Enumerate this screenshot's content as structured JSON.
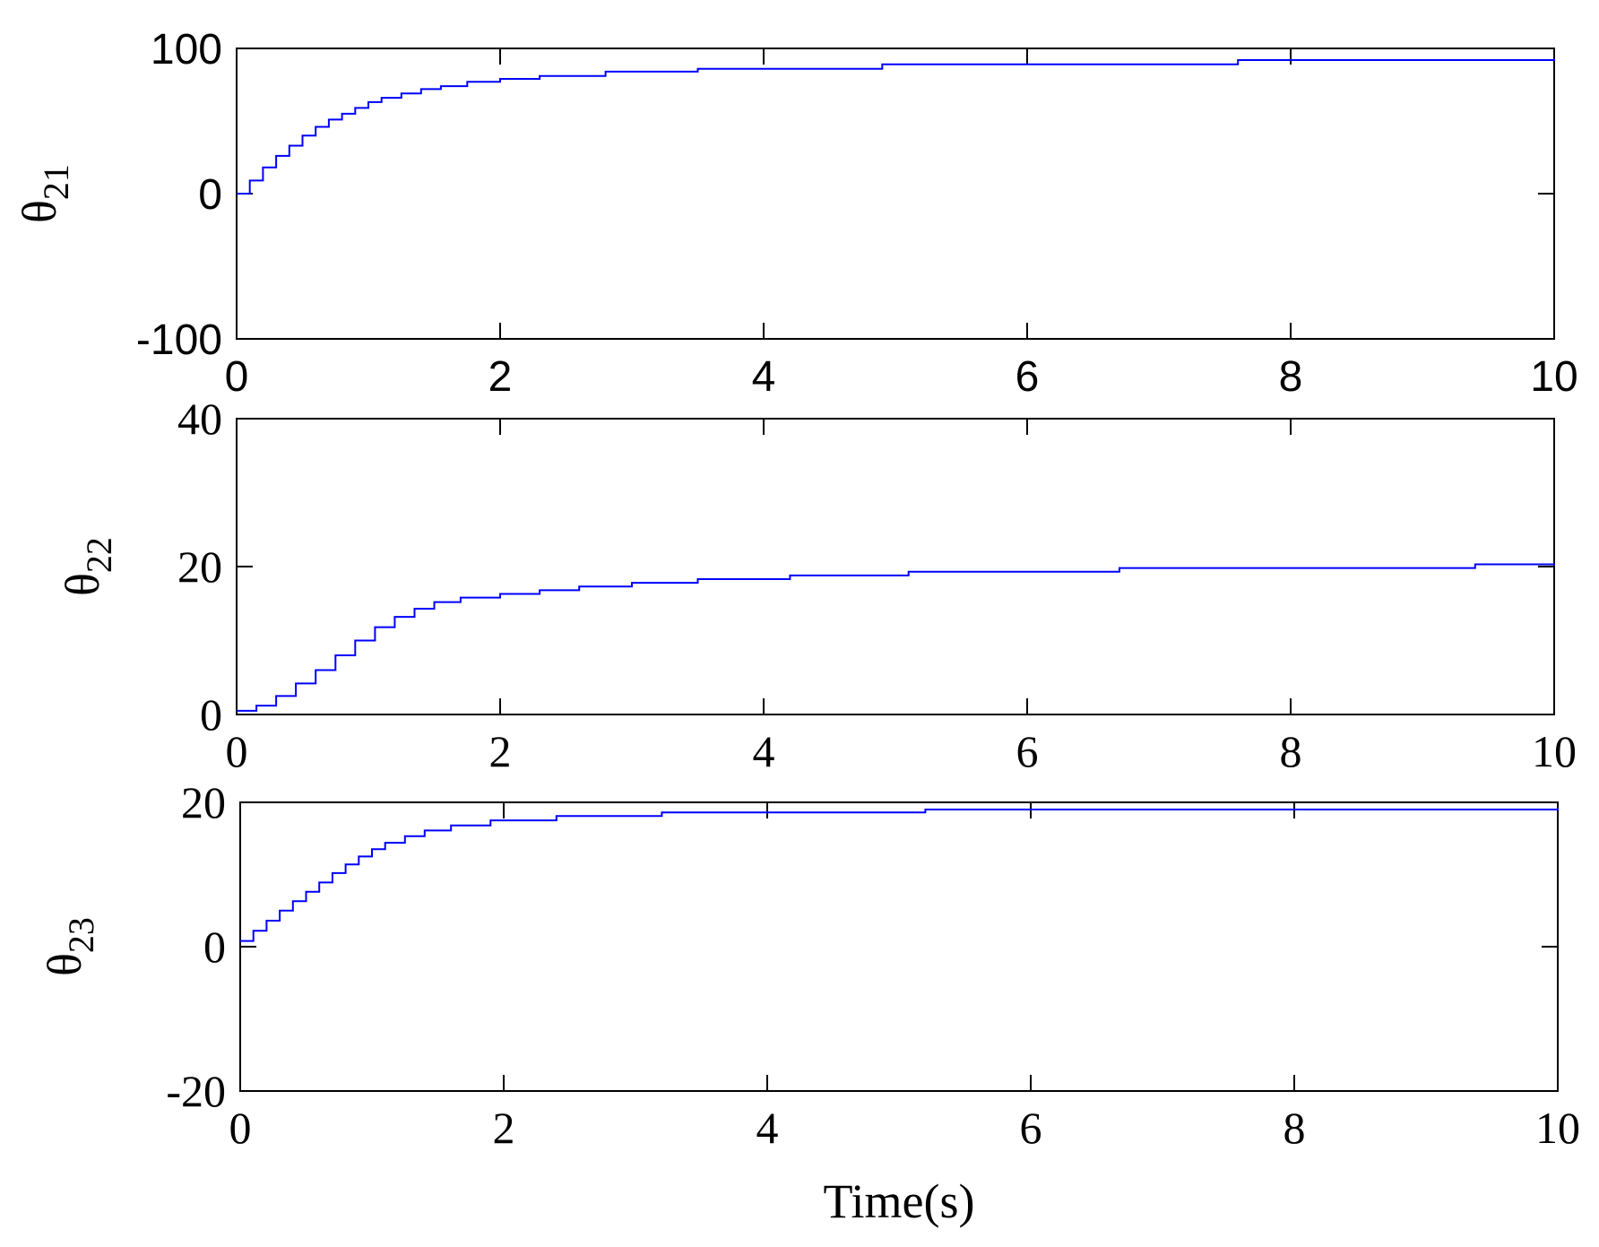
{
  "chart_data": [
    {
      "type": "line",
      "ylabel_symbol": "θ",
      "ylabel_subscript": "21",
      "xlabel": "",
      "xlim": [
        0,
        10
      ],
      "ylim": [
        -100,
        100
      ],
      "x_ticks": [
        "0",
        "2",
        "4",
        "6",
        "8",
        "10"
      ],
      "y_ticks": [
        "-100",
        "0",
        "100"
      ],
      "tick_font": "sans",
      "grid": false,
      "series": [
        {
          "color": "#0000ff",
          "x": [
            0,
            0.1,
            0.2,
            0.3,
            0.4,
            0.5,
            0.6,
            0.7,
            0.8,
            0.9,
            1.0,
            1.1,
            1.25,
            1.4,
            1.55,
            1.75,
            2.0,
            2.3,
            2.8,
            3.5,
            4.9,
            7.6,
            10
          ],
          "y": [
            0,
            9,
            18,
            26,
            33,
            40,
            46,
            51,
            55,
            59,
            63,
            66,
            69,
            72,
            74,
            77,
            79,
            81,
            84,
            86,
            89,
            92,
            93
          ]
        }
      ]
    },
    {
      "type": "line",
      "ylabel_symbol": "θ",
      "ylabel_subscript": "22",
      "xlabel": "",
      "xlim": [
        0,
        10
      ],
      "ylim": [
        0,
        40
      ],
      "x_ticks": [
        "0",
        "2",
        "4",
        "6",
        "8",
        "10"
      ],
      "y_ticks": [
        "0",
        "20",
        "40"
      ],
      "tick_font": "serif",
      "grid": false,
      "series": [
        {
          "color": "#0000ff",
          "x": [
            0,
            0.15,
            0.3,
            0.45,
            0.6,
            0.75,
            0.9,
            1.05,
            1.2,
            1.35,
            1.5,
            1.7,
            2.0,
            2.3,
            2.6,
            3.0,
            3.5,
            4.2,
            5.1,
            6.7,
            9.4,
            10
          ],
          "y": [
            0.5,
            1.2,
            2.5,
            4.2,
            6.0,
            8.0,
            10.0,
            11.8,
            13.2,
            14.3,
            15.2,
            15.8,
            16.3,
            16.8,
            17.3,
            17.8,
            18.3,
            18.8,
            19.3,
            19.8,
            20.3,
            20.4
          ]
        }
      ]
    },
    {
      "type": "line",
      "ylabel_symbol": "θ",
      "ylabel_subscript": "23",
      "xlabel": "Time(s)",
      "xlim": [
        0,
        10
      ],
      "ylim": [
        -20,
        20
      ],
      "x_ticks": [
        "0",
        "2",
        "4",
        "6",
        "8",
        "10"
      ],
      "y_ticks": [
        "-20",
        "0",
        "20"
      ],
      "tick_font": "serif",
      "grid": false,
      "series": [
        {
          "color": "#0000ff",
          "x": [
            0,
            0.1,
            0.2,
            0.3,
            0.4,
            0.5,
            0.6,
            0.7,
            0.8,
            0.9,
            1.0,
            1.1,
            1.25,
            1.4,
            1.6,
            1.9,
            2.4,
            3.2,
            5.2,
            10
          ],
          "y": [
            0.8,
            2.2,
            3.6,
            5.0,
            6.3,
            7.6,
            8.9,
            10.2,
            11.4,
            12.5,
            13.5,
            14.4,
            15.3,
            16.1,
            16.8,
            17.5,
            18.1,
            18.6,
            19.0,
            19.2
          ]
        }
      ]
    }
  ]
}
